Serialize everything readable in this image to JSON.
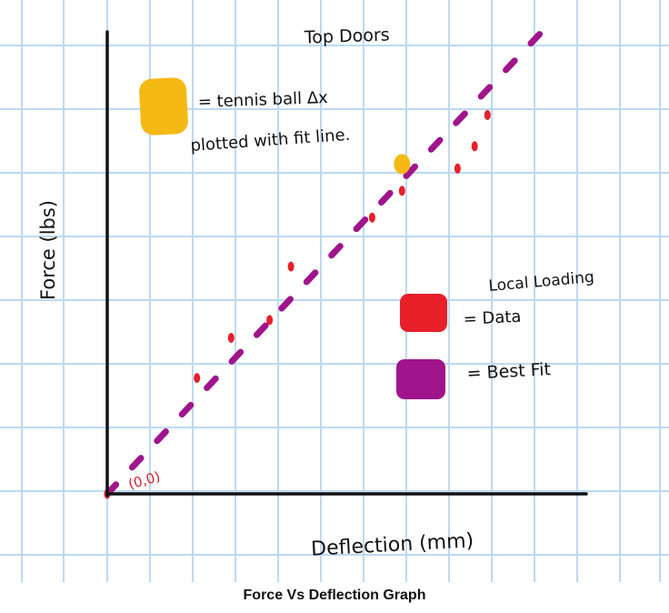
{
  "caption": "Force Vs Deflection Graph",
  "chart_data": {
    "type": "scatter",
    "title": "Top Doors",
    "xlabel": "Deflection (mm)",
    "ylabel": "Force (lbs)",
    "origin_label": "(0,0)",
    "grid": true,
    "legend": {
      "tennis_note_line1": "= tennis ball Δx",
      "tennis_note_line2": "plotted with fit line.",
      "data_line1": "Local Loading",
      "data_line2": "= Data",
      "fit_label": "= Best Fit"
    },
    "series": [
      {
        "name": "Data",
        "color": "#e8202a",
        "points": [
          [
            0.0,
            0.0
          ],
          [
            2.1,
            2.6
          ],
          [
            2.9,
            3.5
          ],
          [
            3.8,
            3.9
          ],
          [
            4.3,
            5.1
          ],
          [
            6.2,
            6.2
          ],
          [
            6.9,
            6.8
          ],
          [
            8.2,
            7.3
          ],
          [
            8.6,
            7.8
          ],
          [
            8.9,
            8.5
          ]
        ]
      },
      {
        "name": "Best Fit",
        "color": "#a0148c",
        "type": "dashed-line",
        "x": [
          0.0,
          10.3
        ],
        "y": [
          0.0,
          10.5
        ]
      },
      {
        "name": "tennis ball Δx",
        "color": "#f5b915",
        "points": [
          [
            6.9,
            7.4
          ]
        ]
      }
    ]
  }
}
